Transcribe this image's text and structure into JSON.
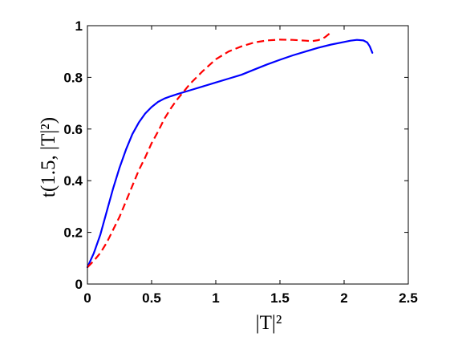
{
  "chart_data": {
    "type": "line",
    "xlabel": "|T|²",
    "ylabel": "t(1.5, |T|²)",
    "xlim": [
      0,
      2.5
    ],
    "ylim": [
      0,
      1
    ],
    "xticks": [
      0,
      0.5,
      1,
      1.5,
      2,
      2.5
    ],
    "xtick_labels": [
      "0",
      "0.5",
      "1",
      "1.5",
      "2",
      "2.5"
    ],
    "yticks": [
      0,
      0.2,
      0.4,
      0.6,
      0.8,
      1
    ],
    "ytick_labels": [
      "0",
      "0.2",
      "0.4",
      "0.6",
      "0.8",
      "1"
    ],
    "grid": false,
    "series": [
      {
        "style": "solid",
        "color": "#0000ff",
        "x": [
          0.0,
          0.05,
          0.1,
          0.15,
          0.2,
          0.25,
          0.3,
          0.35,
          0.4,
          0.45,
          0.5,
          0.55,
          0.6,
          0.65,
          0.7,
          0.8,
          0.9,
          1.0,
          1.1,
          1.2,
          1.3,
          1.4,
          1.5,
          1.6,
          1.7,
          1.8,
          1.9,
          2.0,
          2.05,
          2.1,
          2.15,
          2.18,
          2.2,
          2.22
        ],
        "y": [
          0.065,
          0.12,
          0.19,
          0.28,
          0.37,
          0.45,
          0.52,
          0.58,
          0.625,
          0.66,
          0.685,
          0.705,
          0.718,
          0.727,
          0.735,
          0.75,
          0.765,
          0.78,
          0.795,
          0.81,
          0.83,
          0.85,
          0.868,
          0.885,
          0.9,
          0.915,
          0.927,
          0.937,
          0.942,
          0.945,
          0.943,
          0.935,
          0.92,
          0.895
        ]
      },
      {
        "style": "dashed",
        "color": "#ff0000",
        "x": [
          0.0,
          0.05,
          0.1,
          0.15,
          0.2,
          0.25,
          0.3,
          0.35,
          0.4,
          0.45,
          0.5,
          0.55,
          0.6,
          0.65,
          0.7,
          0.75,
          0.8,
          0.9,
          1.0,
          1.1,
          1.2,
          1.3,
          1.4,
          1.5,
          1.6,
          1.7,
          1.75,
          1.8,
          1.85,
          1.9
        ],
        "y": [
          0.065,
          0.09,
          0.12,
          0.16,
          0.21,
          0.26,
          0.32,
          0.38,
          0.44,
          0.49,
          0.545,
          0.59,
          0.64,
          0.68,
          0.715,
          0.745,
          0.775,
          0.825,
          0.87,
          0.9,
          0.92,
          0.935,
          0.943,
          0.946,
          0.945,
          0.942,
          0.94,
          0.944,
          0.955,
          0.975
        ]
      }
    ]
  }
}
